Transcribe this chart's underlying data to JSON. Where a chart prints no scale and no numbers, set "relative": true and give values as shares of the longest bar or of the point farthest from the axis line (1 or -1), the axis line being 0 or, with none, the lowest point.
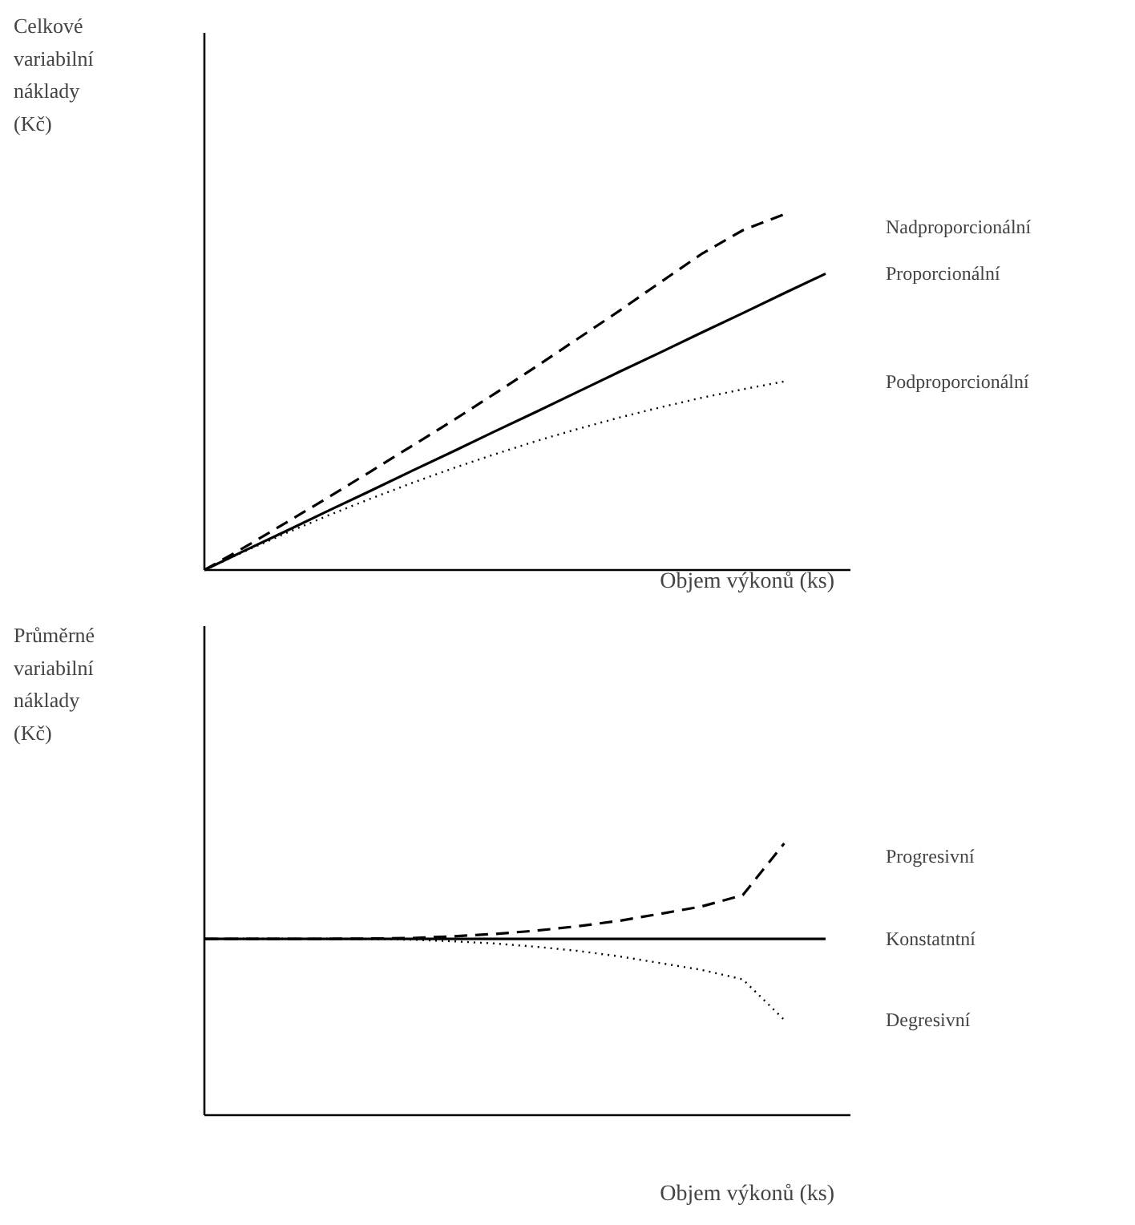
{
  "chart_data": [
    {
      "type": "line",
      "relative": true,
      "ylabel": "Celkové\nvariabilní\nnáklady\n(Kč)",
      "xlabel": "Objem výkonů (ks)",
      "categories": [
        null,
        null,
        null,
        null,
        null,
        null,
        null,
        null,
        null,
        null,
        null,
        null,
        null,
        null,
        null,
        null
      ],
      "series": [
        {
          "name": "Nadproporcionální",
          "color": "#000000",
          "line_style": "dashed",
          "values": [
            0,
            0.066,
            0.135,
            0.205,
            0.276,
            0.348,
            0.42,
            0.495,
            0.571,
            0.649,
            0.727,
            0.808,
            0.888,
            0.955,
            1.0,
            null
          ]
        },
        {
          "name": "Proporcionální",
          "color": "#000000",
          "line_style": "solid",
          "values": [
            0,
            0.056,
            0.111,
            0.167,
            0.222,
            0.278,
            0.333,
            0.389,
            0.444,
            0.5,
            0.556,
            0.611,
            0.667,
            0.722,
            0.778,
            0.833
          ]
        },
        {
          "name": "Podproporcionální",
          "color": "#000000",
          "line_style": "dotted",
          "values": [
            0,
            0.054,
            0.105,
            0.154,
            0.2,
            0.244,
            0.286,
            0.325,
            0.362,
            0.396,
            0.428,
            0.457,
            0.484,
            0.508,
            0.53,
            null
          ]
        }
      ]
    },
    {
      "type": "line",
      "relative": true,
      "ylabel": "Průměrné\nvariabilní\nnáklady\n(Kč)",
      "xlabel": "Objem výkonů (ks)",
      "categories": [
        null,
        null,
        null,
        null,
        null,
        null,
        null,
        null,
        null,
        null,
        null,
        null,
        null,
        null,
        null,
        null
      ],
      "series": [
        {
          "name": "Progresivní",
          "color": "#000000",
          "line_style": "dashed",
          "values": [
            0.649,
            0.649,
            0.649,
            0.649,
            0.65,
            0.652,
            0.658,
            0.667,
            0.679,
            0.695,
            0.715,
            0.741,
            0.768,
            0.81,
            1.0,
            null
          ]
        },
        {
          "name": "Konstatntní",
          "color": "#000000",
          "line_style": "solid",
          "values": [
            0.649,
            0.649,
            0.649,
            0.649,
            0.649,
            0.649,
            0.649,
            0.649,
            0.649,
            0.649,
            0.649,
            0.649,
            0.649,
            0.649,
            0.649,
            0.649
          ]
        },
        {
          "name": "Degresivní",
          "color": "#000000",
          "line_style": "dotted",
          "values": [
            0.649,
            0.649,
            0.649,
            0.649,
            0.648,
            0.646,
            0.64,
            0.632,
            0.62,
            0.605,
            0.585,
            0.56,
            0.535,
            0.5,
            0.351,
            null
          ]
        }
      ]
    }
  ]
}
